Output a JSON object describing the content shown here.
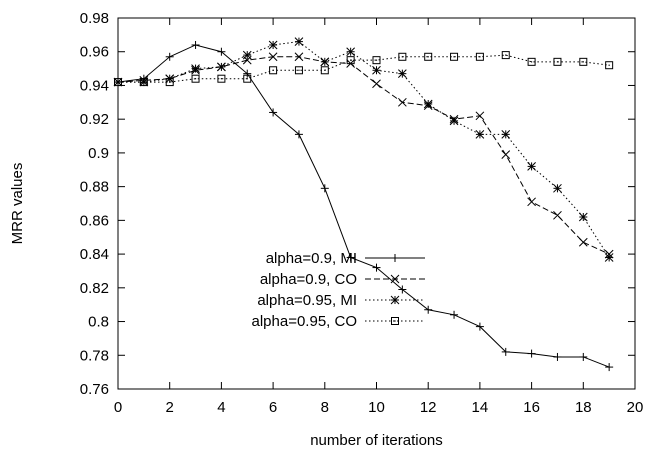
{
  "chart_data": {
    "type": "line",
    "title": "",
    "xlabel": "number of iterations",
    "ylabel": "MRR values",
    "xlim": [
      0,
      20
    ],
    "ylim": [
      0.76,
      0.98
    ],
    "xticks": [
      "0",
      "2",
      "4",
      "6",
      "8",
      "10",
      "12",
      "14",
      "16",
      "18",
      "20"
    ],
    "yticks": [
      "0.76",
      "0.78",
      "0.8",
      "0.82",
      "0.84",
      "0.86",
      "0.88",
      "0.9",
      "0.92",
      "0.94",
      "0.96",
      "0.98"
    ],
    "grid": false,
    "legend_position": "center-left",
    "x": [
      0,
      1,
      2,
      3,
      4,
      5,
      6,
      7,
      8,
      9,
      10,
      11,
      12,
      13,
      14,
      15,
      16,
      17,
      18,
      19
    ],
    "series": [
      {
        "name": "alpha=0.9, MI",
        "line_style": "solid",
        "marker": "plus",
        "values": [
          0.942,
          0.944,
          0.957,
          0.964,
          0.96,
          0.947,
          0.924,
          0.911,
          0.879,
          0.838,
          0.832,
          0.819,
          0.807,
          0.804,
          0.797,
          0.782,
          0.781,
          0.779,
          0.779,
          0.773
        ]
      },
      {
        "name": "alpha=0.9, CO",
        "line_style": "dashed",
        "marker": "cross",
        "values": [
          0.942,
          0.943,
          0.944,
          0.949,
          0.951,
          0.955,
          0.957,
          0.957,
          0.954,
          0.953,
          0.941,
          0.93,
          0.928,
          0.92,
          0.922,
          0.899,
          0.871,
          0.863,
          0.847,
          0.84
        ]
      },
      {
        "name": "alpha=0.95, MI",
        "line_style": "dotted",
        "marker": "star",
        "values": [
          0.942,
          0.942,
          0.944,
          0.95,
          0.951,
          0.958,
          0.964,
          0.966,
          0.954,
          0.96,
          0.949,
          0.947,
          0.929,
          0.919,
          0.911,
          0.911,
          0.892,
          0.879,
          0.862,
          0.838
        ]
      },
      {
        "name": "alpha=0.95, CO",
        "line_style": "dotted",
        "marker": "square",
        "values": [
          0.942,
          0.942,
          0.942,
          0.944,
          0.944,
          0.944,
          0.949,
          0.949,
          0.949,
          0.955,
          0.955,
          0.957,
          0.957,
          0.957,
          0.957,
          0.958,
          0.954,
          0.954,
          0.954,
          0.952
        ]
      }
    ]
  }
}
